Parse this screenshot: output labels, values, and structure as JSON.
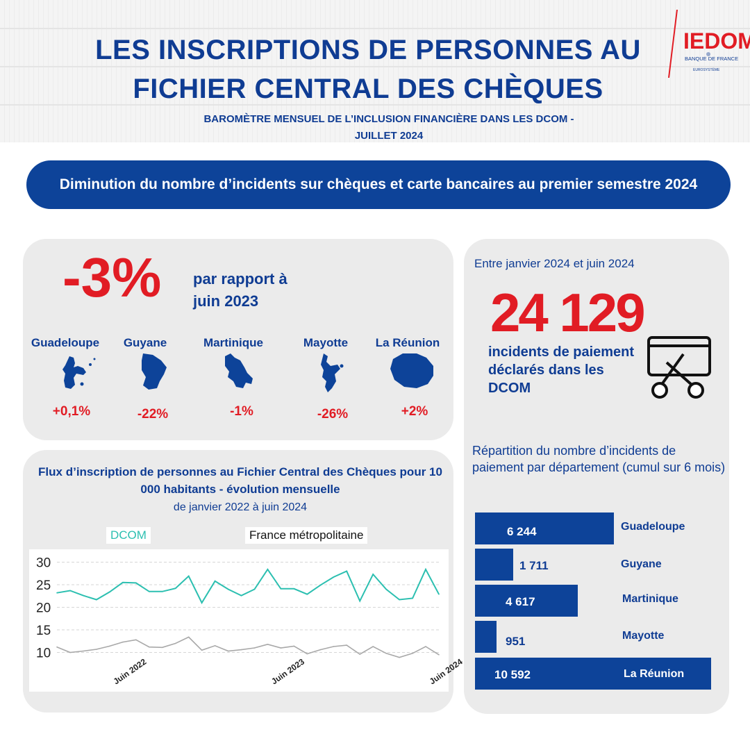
{
  "header": {
    "title_line1": "LES INSCRIPTIONS  DE  PERSONNES AU",
    "title_line2": "FICHIER CENTRAL DES CHÈQUES",
    "subtitle_line1": "BAROMÈTRE MENSUEL DE L’INCLUSION FINANCIÈRE DANS LES DCOM -",
    "subtitle_line2": "JUILLET 2024",
    "logo_text": "IEDOM",
    "logo_sub": "BANQUE DE FRANCE",
    "logo_small": "EUROSYSTÈME"
  },
  "banner": {
    "text": "Diminution du nombre d’incidents sur chèques et carte bancaires au premier semestre 2024"
  },
  "summary": {
    "value": "-3%",
    "note": "par rapport à juin 2023",
    "regions": [
      {
        "name": "Guadeloupe",
        "change": "+0,1%"
      },
      {
        "name": "Guyane",
        "change": "-22%"
      },
      {
        "name": "Martinique",
        "change": "-1%"
      },
      {
        "name": "Mayotte",
        "change": "-26%"
      },
      {
        "name": "La Réunion",
        "change": "+2%"
      }
    ]
  },
  "incidents": {
    "period": "Entre janvier 2024 et juin 2024",
    "total": "24 129",
    "description": "incidents de paiement déclarés dans les DCOM",
    "icon": "credit-card-scissors-icon"
  },
  "repartition": {
    "title": "Répartition du nombre d’incidents de paiement par département (cumul sur 6 mois)",
    "bars": [
      {
        "region": "Guadeloupe",
        "label": "6 244",
        "value": 6244
      },
      {
        "region": "Guyane",
        "label": "1 711",
        "value": 1711
      },
      {
        "region": "Martinique",
        "label": "4 617",
        "value": 4617
      },
      {
        "region": "Mayotte",
        "label": "951",
        "value": 951
      },
      {
        "region": "La Réunion",
        "label": "10 592",
        "value": 10592
      }
    ]
  },
  "colors": {
    "blue": "#0d4399",
    "red": "#e11c24",
    "teal": "#2bbfb0",
    "grey": "#a8a8a8",
    "panel": "#ebebeb"
  },
  "chart_data": {
    "type": "line",
    "title": "Flux d’inscription de personnes au Fichier Central des Chèques pour 10 000 habitants - évolution mensuelle",
    "subtitle": "de janvier 2022 à juin 2024",
    "xlabel": "",
    "ylabel": "",
    "x_tick_labels": [
      "Juin 2022",
      "Juin 2023",
      "Juin 2024"
    ],
    "y_ticks": [
      10,
      15,
      20,
      25,
      30
    ],
    "ylim": [
      9,
      31
    ],
    "grid": true,
    "legend_position": "top",
    "x": [
      "2022-01",
      "2022-02",
      "2022-03",
      "2022-04",
      "2022-05",
      "2022-06",
      "2022-07",
      "2022-08",
      "2022-09",
      "2022-10",
      "2022-11",
      "2022-12",
      "2023-01",
      "2023-02",
      "2023-03",
      "2023-04",
      "2023-05",
      "2023-06",
      "2023-07",
      "2023-08",
      "2023-09",
      "2023-10",
      "2023-11",
      "2023-12",
      "2024-01",
      "2024-02",
      "2024-03",
      "2024-04",
      "2024-05",
      "2024-06"
    ],
    "series": [
      {
        "name": "DCOM",
        "color": "#2bbfb0",
        "values": [
          23.2,
          23.7,
          22.6,
          21.7,
          23.4,
          25.5,
          25.4,
          23.5,
          23.5,
          24.2,
          26.9,
          21.0,
          25.8,
          24.0,
          22.6,
          24.0,
          28.4,
          24.1,
          24.1,
          22.9,
          24.9,
          26.7,
          28.0,
          21.4,
          27.3,
          24.0,
          21.7,
          22.0,
          28.4,
          22.9
        ]
      },
      {
        "name": "France métropolitaine",
        "color": "#a8a8a8",
        "values": [
          11.2,
          10.0,
          10.3,
          10.7,
          11.4,
          12.3,
          12.8,
          11.2,
          11.1,
          12.0,
          13.4,
          10.5,
          11.5,
          10.3,
          10.6,
          11.0,
          11.8,
          11.0,
          11.4,
          9.7,
          10.6,
          11.3,
          11.6,
          9.6,
          11.3,
          9.8,
          8.9,
          9.8,
          11.3,
          9.5
        ]
      }
    ]
  }
}
